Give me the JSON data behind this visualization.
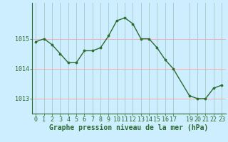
{
  "x": [
    0,
    1,
    2,
    3,
    4,
    5,
    6,
    7,
    8,
    9,
    10,
    11,
    12,
    13,
    14,
    15,
    16,
    17,
    19,
    20,
    21,
    22,
    23
  ],
  "y": [
    1014.9,
    1015.0,
    1014.8,
    1014.5,
    1014.2,
    1014.2,
    1014.6,
    1014.6,
    1014.7,
    1015.1,
    1015.6,
    1015.7,
    1015.5,
    1015.0,
    1015.0,
    1014.7,
    1014.3,
    1014.0,
    1013.1,
    1013.0,
    1013.0,
    1013.35,
    1013.45
  ],
  "line_color": "#2d6a2d",
  "marker_color": "#2d6a2d",
  "bg_color": "#cceeff",
  "grid_color_v": "#aacccc",
  "grid_color_h": "#ffaaaa",
  "xlabel": "Graphe pression niveau de la mer (hPa)",
  "xticks": [
    0,
    1,
    2,
    3,
    4,
    5,
    6,
    7,
    8,
    9,
    10,
    11,
    12,
    13,
    14,
    15,
    16,
    17,
    19,
    20,
    21,
    22,
    23
  ],
  "yticks": [
    1013,
    1014,
    1015
  ],
  "ylim": [
    1012.5,
    1016.2
  ],
  "xlim": [
    -0.5,
    23.5
  ],
  "tick_fontsize": 6,
  "xlabel_fontsize": 7
}
